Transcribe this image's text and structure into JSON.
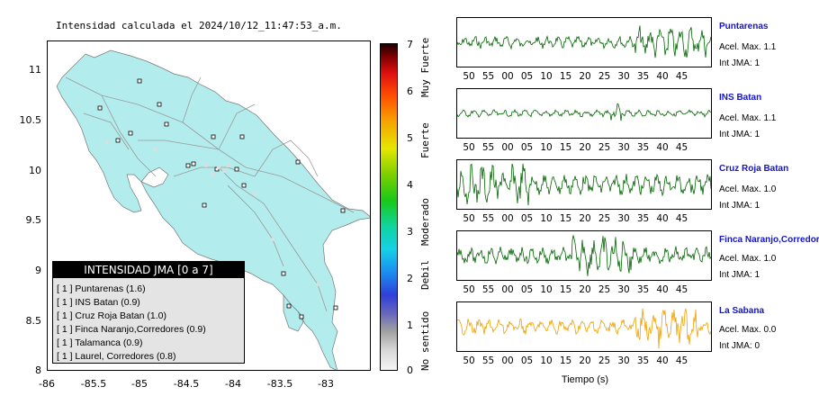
{
  "title": "Intensidad calculada el 2024/10/12_11:47:53_a.m.",
  "map": {
    "y_ticks": [
      "11",
      "10.5",
      "10",
      "9.5",
      "9",
      "8.5",
      "8"
    ],
    "x_ticks": [
      "-86",
      "-85.5",
      "-85",
      "-84.5",
      "-84",
      "-83.5",
      "-83"
    ],
    "land_color": "#b3ecec",
    "station_marker_color": "#c8c8c8"
  },
  "legend": {
    "header": "INTENSIDAD JMA [0 a 7]",
    "rows": [
      "[ 1 ]  Puntarenas (1.6)",
      "[ 1 ]  INS Batan (0.9)",
      "[ 1 ]  Cruz Roja Batan (1.0)",
      "[ 1 ]  Finca Naranjo,Corredores (0.9)",
      "[ 1 ]  Talamanca (0.9)",
      "[ 1 ]  Laurel, Corredores (0.8)"
    ]
  },
  "colorbar": {
    "ticks": [
      "7",
      "6",
      "5",
      "4",
      "3",
      "2",
      "1",
      "0"
    ],
    "labels": [
      "Muy Fuerte",
      "Fuerte",
      "Moderado",
      "Debil",
      "No sentido"
    ]
  },
  "time_axis": {
    "ticks": [
      "50",
      "55",
      "00",
      "05",
      "10",
      "15",
      "20",
      "25",
      "30",
      "35",
      "40",
      "45"
    ],
    "title": "Tiempo (s)"
  },
  "stations": [
    {
      "name": "Puntarenas",
      "acel": "Acel. Max. 1.1",
      "int": "Int JMA: 1",
      "color": "#006400"
    },
    {
      "name": "INS Batan",
      "acel": "Acel. Max. 1.1",
      "int": "Int JMA: 1",
      "color": "#006400"
    },
    {
      "name": "Cruz Roja Batan",
      "acel": "Acel. Max. 1.0",
      "int": "Int JMA: 1",
      "color": "#006400"
    },
    {
      "name": "Finca Naranjo,Corredor",
      "acel": "Acel. Max. 1.0",
      "int": "Int JMA: 1",
      "color": "#006400"
    },
    {
      "name": "La Sabana",
      "acel": "Acel. Max. 0.0",
      "int": "Int JMA: 0",
      "color": "#f0a000"
    }
  ]
}
